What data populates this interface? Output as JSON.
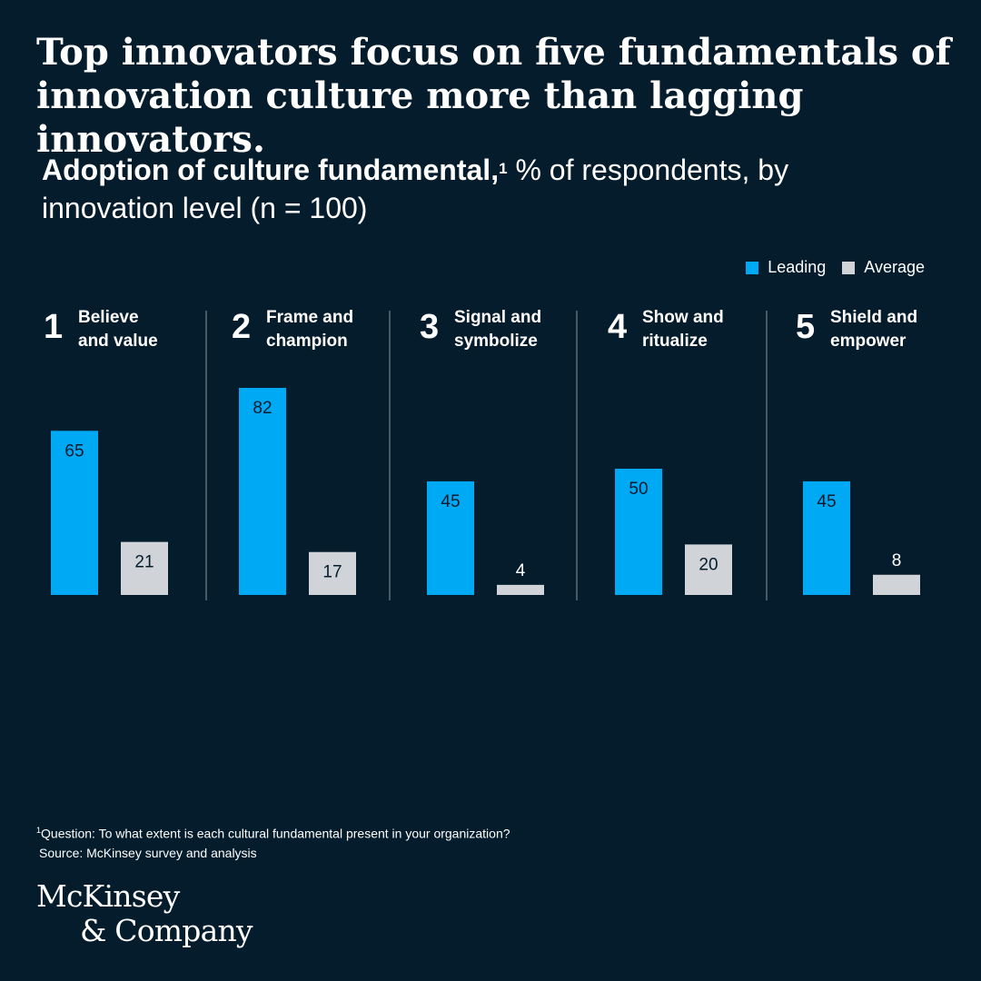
{
  "headline": "Top innovators focus on five fundamentals of innovation culture more than lagging innovators.",
  "subtitle": {
    "bold": "Adoption of culture fundamental,",
    "footnote_mark": "1",
    "regular": " % of respondents, by innovation level (n = 100)"
  },
  "legend": {
    "leading": "Leading",
    "average": "Average"
  },
  "colors": {
    "background": "#051c2c",
    "leading": "#00a9f4",
    "average": "#d0d4d9",
    "divider": "#8a96a3"
  },
  "chart_data": {
    "type": "bar",
    "title": "Adoption of culture fundamental, % of respondents, by innovation level (n = 100)",
    "categories": [
      {
        "number": "1",
        "line1": "Believe",
        "line2": "and value"
      },
      {
        "number": "2",
        "line1": "Frame and",
        "line2": "champion"
      },
      {
        "number": "3",
        "line1": "Signal and",
        "line2": "symbolize"
      },
      {
        "number": "4",
        "line1": "Show and",
        "line2": "ritualize"
      },
      {
        "number": "5",
        "line1": "Shield and",
        "line2": "empower"
      }
    ],
    "series": [
      {
        "name": "Leading",
        "values": [
          65,
          82,
          45,
          50,
          45
        ]
      },
      {
        "name": "Average",
        "values": [
          21,
          17,
          4,
          20,
          8
        ]
      }
    ],
    "ylim": [
      0,
      100
    ],
    "grid": false,
    "legend_position": "top-right"
  },
  "footnotes": {
    "mark": "1",
    "question": "Question: To what extent is each cultural fundamental present in your organization?",
    "source": "Source: McKinsey survey and analysis"
  },
  "logo": {
    "line1": "McKinsey",
    "line2": "& Company"
  }
}
